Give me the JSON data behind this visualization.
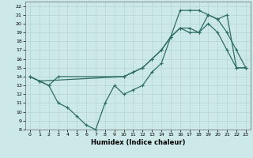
{
  "xlabel": "Humidex (Indice chaleur)",
  "xlim": [
    -0.5,
    23.5
  ],
  "ylim": [
    8,
    22.5
  ],
  "xticks": [
    0,
    1,
    2,
    3,
    4,
    5,
    6,
    7,
    8,
    9,
    10,
    11,
    12,
    13,
    14,
    15,
    16,
    17,
    18,
    19,
    20,
    21,
    22,
    23
  ],
  "yticks": [
    8,
    9,
    10,
    11,
    12,
    13,
    14,
    15,
    16,
    17,
    18,
    19,
    20,
    21,
    22
  ],
  "bg_color": "#cce8e8",
  "grid_color": "#aacccc",
  "line_color": "#2e6e62",
  "line1_x": [
    0,
    1,
    2,
    3,
    10,
    11,
    12,
    13,
    14,
    15,
    16,
    17,
    18,
    19,
    20,
    21,
    22,
    23
  ],
  "line1_y": [
    14,
    13.5,
    13,
    14,
    14,
    14.5,
    15,
    16,
    17,
    18.5,
    21.5,
    21.5,
    21.5,
    21,
    20.5,
    21,
    15,
    15
  ],
  "line2_x": [
    0,
    1,
    2,
    3,
    4,
    5,
    6,
    7,
    8,
    9,
    10,
    11,
    12,
    13,
    14,
    15,
    16,
    17,
    18,
    19,
    20,
    21,
    22,
    23
  ],
  "line2_y": [
    14,
    13.5,
    13,
    11,
    10.5,
    9.5,
    8.5,
    8,
    11,
    13,
    12,
    12.5,
    13,
    14.5,
    15.5,
    18.5,
    19.5,
    19.5,
    19,
    20,
    19,
    17,
    15,
    15
  ],
  "line3_x": [
    0,
    1,
    10,
    11,
    12,
    13,
    14,
    15,
    16,
    17,
    18,
    19,
    20,
    21,
    22,
    23
  ],
  "line3_y": [
    14,
    13.5,
    14,
    14.5,
    15,
    16,
    17,
    18.5,
    19.5,
    19,
    19,
    21,
    20.5,
    19,
    17,
    15
  ]
}
